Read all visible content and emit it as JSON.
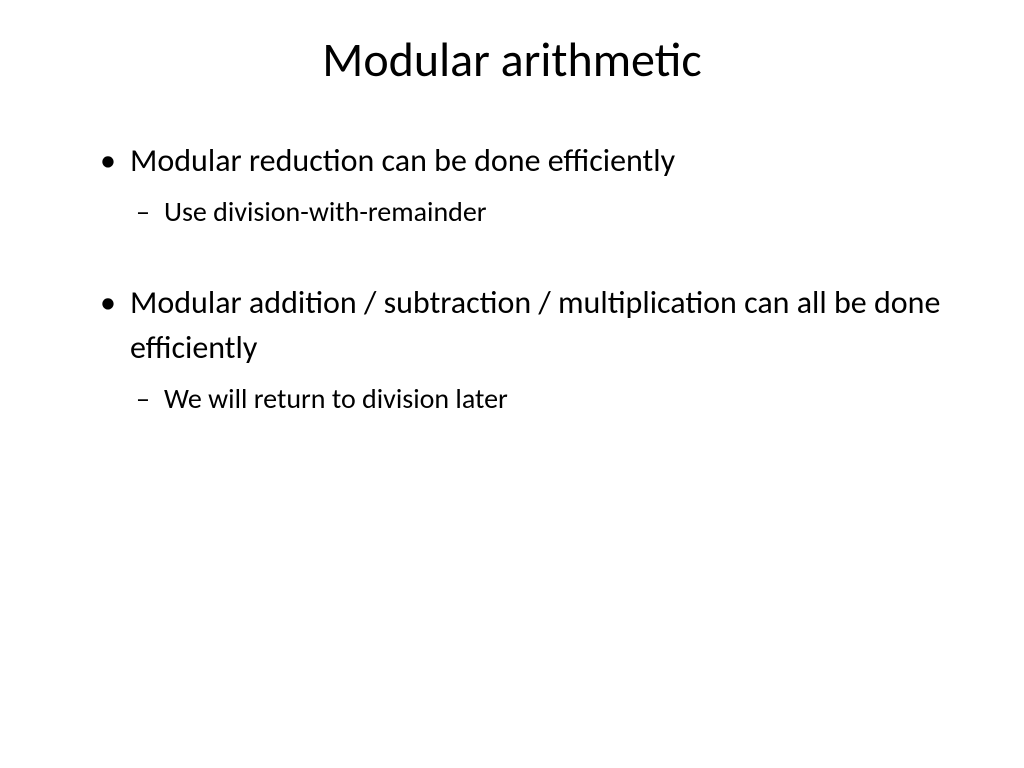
{
  "slide": {
    "title": "Modular arithmetic",
    "bullets": [
      {
        "text": "Modular reduction can be done efficiently",
        "sub": "Use division-with-remainder"
      },
      {
        "text": "Modular addition / subtraction / multiplication can all be done efficiently",
        "sub": "We will return to division later"
      }
    ]
  },
  "style": {
    "background_color": "#ffffff",
    "text_color": "#000000",
    "title_fontsize": 48,
    "bullet_fontsize": 32,
    "sub_bullet_fontsize": 28,
    "font_family": "Calibri"
  }
}
